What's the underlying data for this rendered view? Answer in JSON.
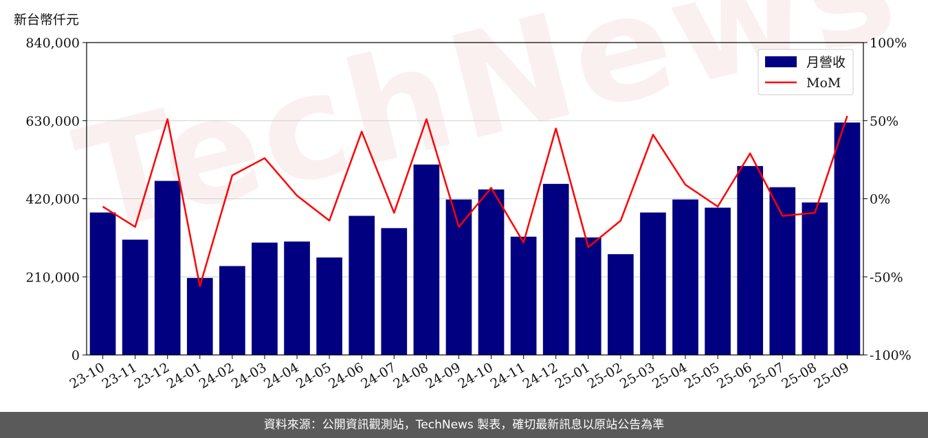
{
  "unit_label": "新台幣仟元",
  "watermark": "TechNews",
  "footer": "資料來源：公開資訊觀測站，TechNews 製表，確切最新訊息以原站公告為準",
  "colors": {
    "bar": "#000080",
    "line": "#ff0000",
    "grid": "#d0d0d0"
  },
  "chart_data": {
    "type": "bar",
    "categories": [
      "23-10",
      "23-11",
      "23-12",
      "24-01",
      "24-02",
      "24-03",
      "24-04",
      "24-05",
      "24-06",
      "24-07",
      "24-08",
      "24-09",
      "24-10",
      "24-11",
      "24-12",
      "25-01",
      "25-02",
      "25-03",
      "25-04",
      "25-05",
      "25-06",
      "25-07",
      "25-08",
      "25-09"
    ],
    "series": [
      {
        "name": "月營收",
        "type": "bar",
        "axis": "left",
        "values": [
          383000,
          310000,
          468000,
          207000,
          239000,
          302000,
          305000,
          262000,
          374000,
          341000,
          512000,
          418000,
          445000,
          318000,
          460000,
          316000,
          271000,
          383000,
          418000,
          396000,
          508000,
          451000,
          410000,
          625000
        ]
      },
      {
        "name": "MoM",
        "type": "line",
        "axis": "right",
        "values": [
          -5,
          -18,
          51,
          -56,
          15,
          26,
          2,
          -14,
          43,
          -9,
          51,
          -18,
          7,
          -28,
          45,
          -31,
          -14,
          41,
          9,
          -5,
          29,
          -11,
          -9,
          53
        ]
      }
    ],
    "left_axis": {
      "ylim": [
        0,
        840000
      ],
      "ticks": [
        "0",
        "210,000",
        "420,000",
        "630,000",
        "840,000"
      ],
      "tick_values": [
        0,
        210000,
        420000,
        630000,
        840000
      ]
    },
    "right_axis": {
      "ylim": [
        -100,
        100
      ],
      "ticks": [
        "-100%",
        "-50%",
        "0%",
        "50%",
        "100%"
      ],
      "tick_values": [
        -100,
        -50,
        0,
        50,
        100
      ]
    },
    "legend": {
      "position": "top-right"
    },
    "grid": true
  }
}
